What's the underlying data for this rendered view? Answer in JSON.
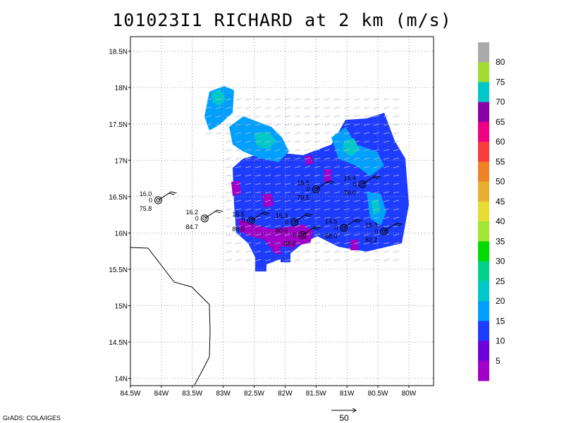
{
  "title": "101023I1 RICHARD at 2 km (m/s)",
  "credit": "GrADS: COLA/IGES",
  "vector_scale": {
    "label": "50"
  },
  "chart_data": {
    "type": "heatmap",
    "title": "101023I1 RICHARD at 2 km (m/s)",
    "xlim": [
      -84.5,
      -79.6
    ],
    "ylim": [
      13.9,
      18.7
    ],
    "x_ticks": [
      "84.5W",
      "84W",
      "83.5W",
      "83W",
      "82.5W",
      "82W",
      "81.5W",
      "81W",
      "80.5W",
      "80W"
    ],
    "y_ticks": [
      "18.5N",
      "18N",
      "17.5N",
      "17N",
      "16.5N",
      "16N",
      "15.5N",
      "15N",
      "14.5N",
      "14N"
    ],
    "grid": true,
    "colorbar": {
      "labels": [
        "5",
        "10",
        "15",
        "20",
        "25",
        "30",
        "35",
        "40",
        "45",
        "50",
        "55",
        "60",
        "65",
        "70",
        "75",
        "80"
      ],
      "colors": [
        "#a000c8",
        "#6e00dc",
        "#1e3cff",
        "#00a0ff",
        "#00c8c8",
        "#00d28c",
        "#00dc00",
        "#a0e632",
        "#e6dc32",
        "#e6af2d",
        "#f08228",
        "#fa3c3c",
        "#f00082",
        "#8c00aa",
        "#00c8c8",
        "#a0dc32",
        "#aaaaaa"
      ]
    },
    "series": [
      {
        "values": [
          {
            "lon": -84.05,
            "lat": 16.45,
            "upper": "16.0",
            "lower": "75.8"
          },
          {
            "lon": -83.3,
            "lat": 16.2,
            "upper": "16.2",
            "lower": "84.7"
          },
          {
            "lon": -82.55,
            "lat": 16.17,
            "upper": "15.5",
            "lower": "86.0"
          },
          {
            "lon": -81.85,
            "lat": 16.15,
            "upper": "16.3",
            "lower": "80.0"
          },
          {
            "lon": -81.72,
            "lat": 15.97,
            "upper": "",
            "lower": "58.0"
          },
          {
            "lon": -81.5,
            "lat": 16.6,
            "upper": "15.5",
            "lower": "79.5"
          },
          {
            "lon": -81.05,
            "lat": 16.07,
            "upper": "14.5",
            "lower": "58.0"
          },
          {
            "lon": -80.75,
            "lat": 16.67,
            "upper": "15.4",
            "lower": "78.0"
          },
          {
            "lon": -80.4,
            "lat": 16.02,
            "upper": "15.3",
            "lower": "82.2"
          }
        ]
      }
    ]
  }
}
